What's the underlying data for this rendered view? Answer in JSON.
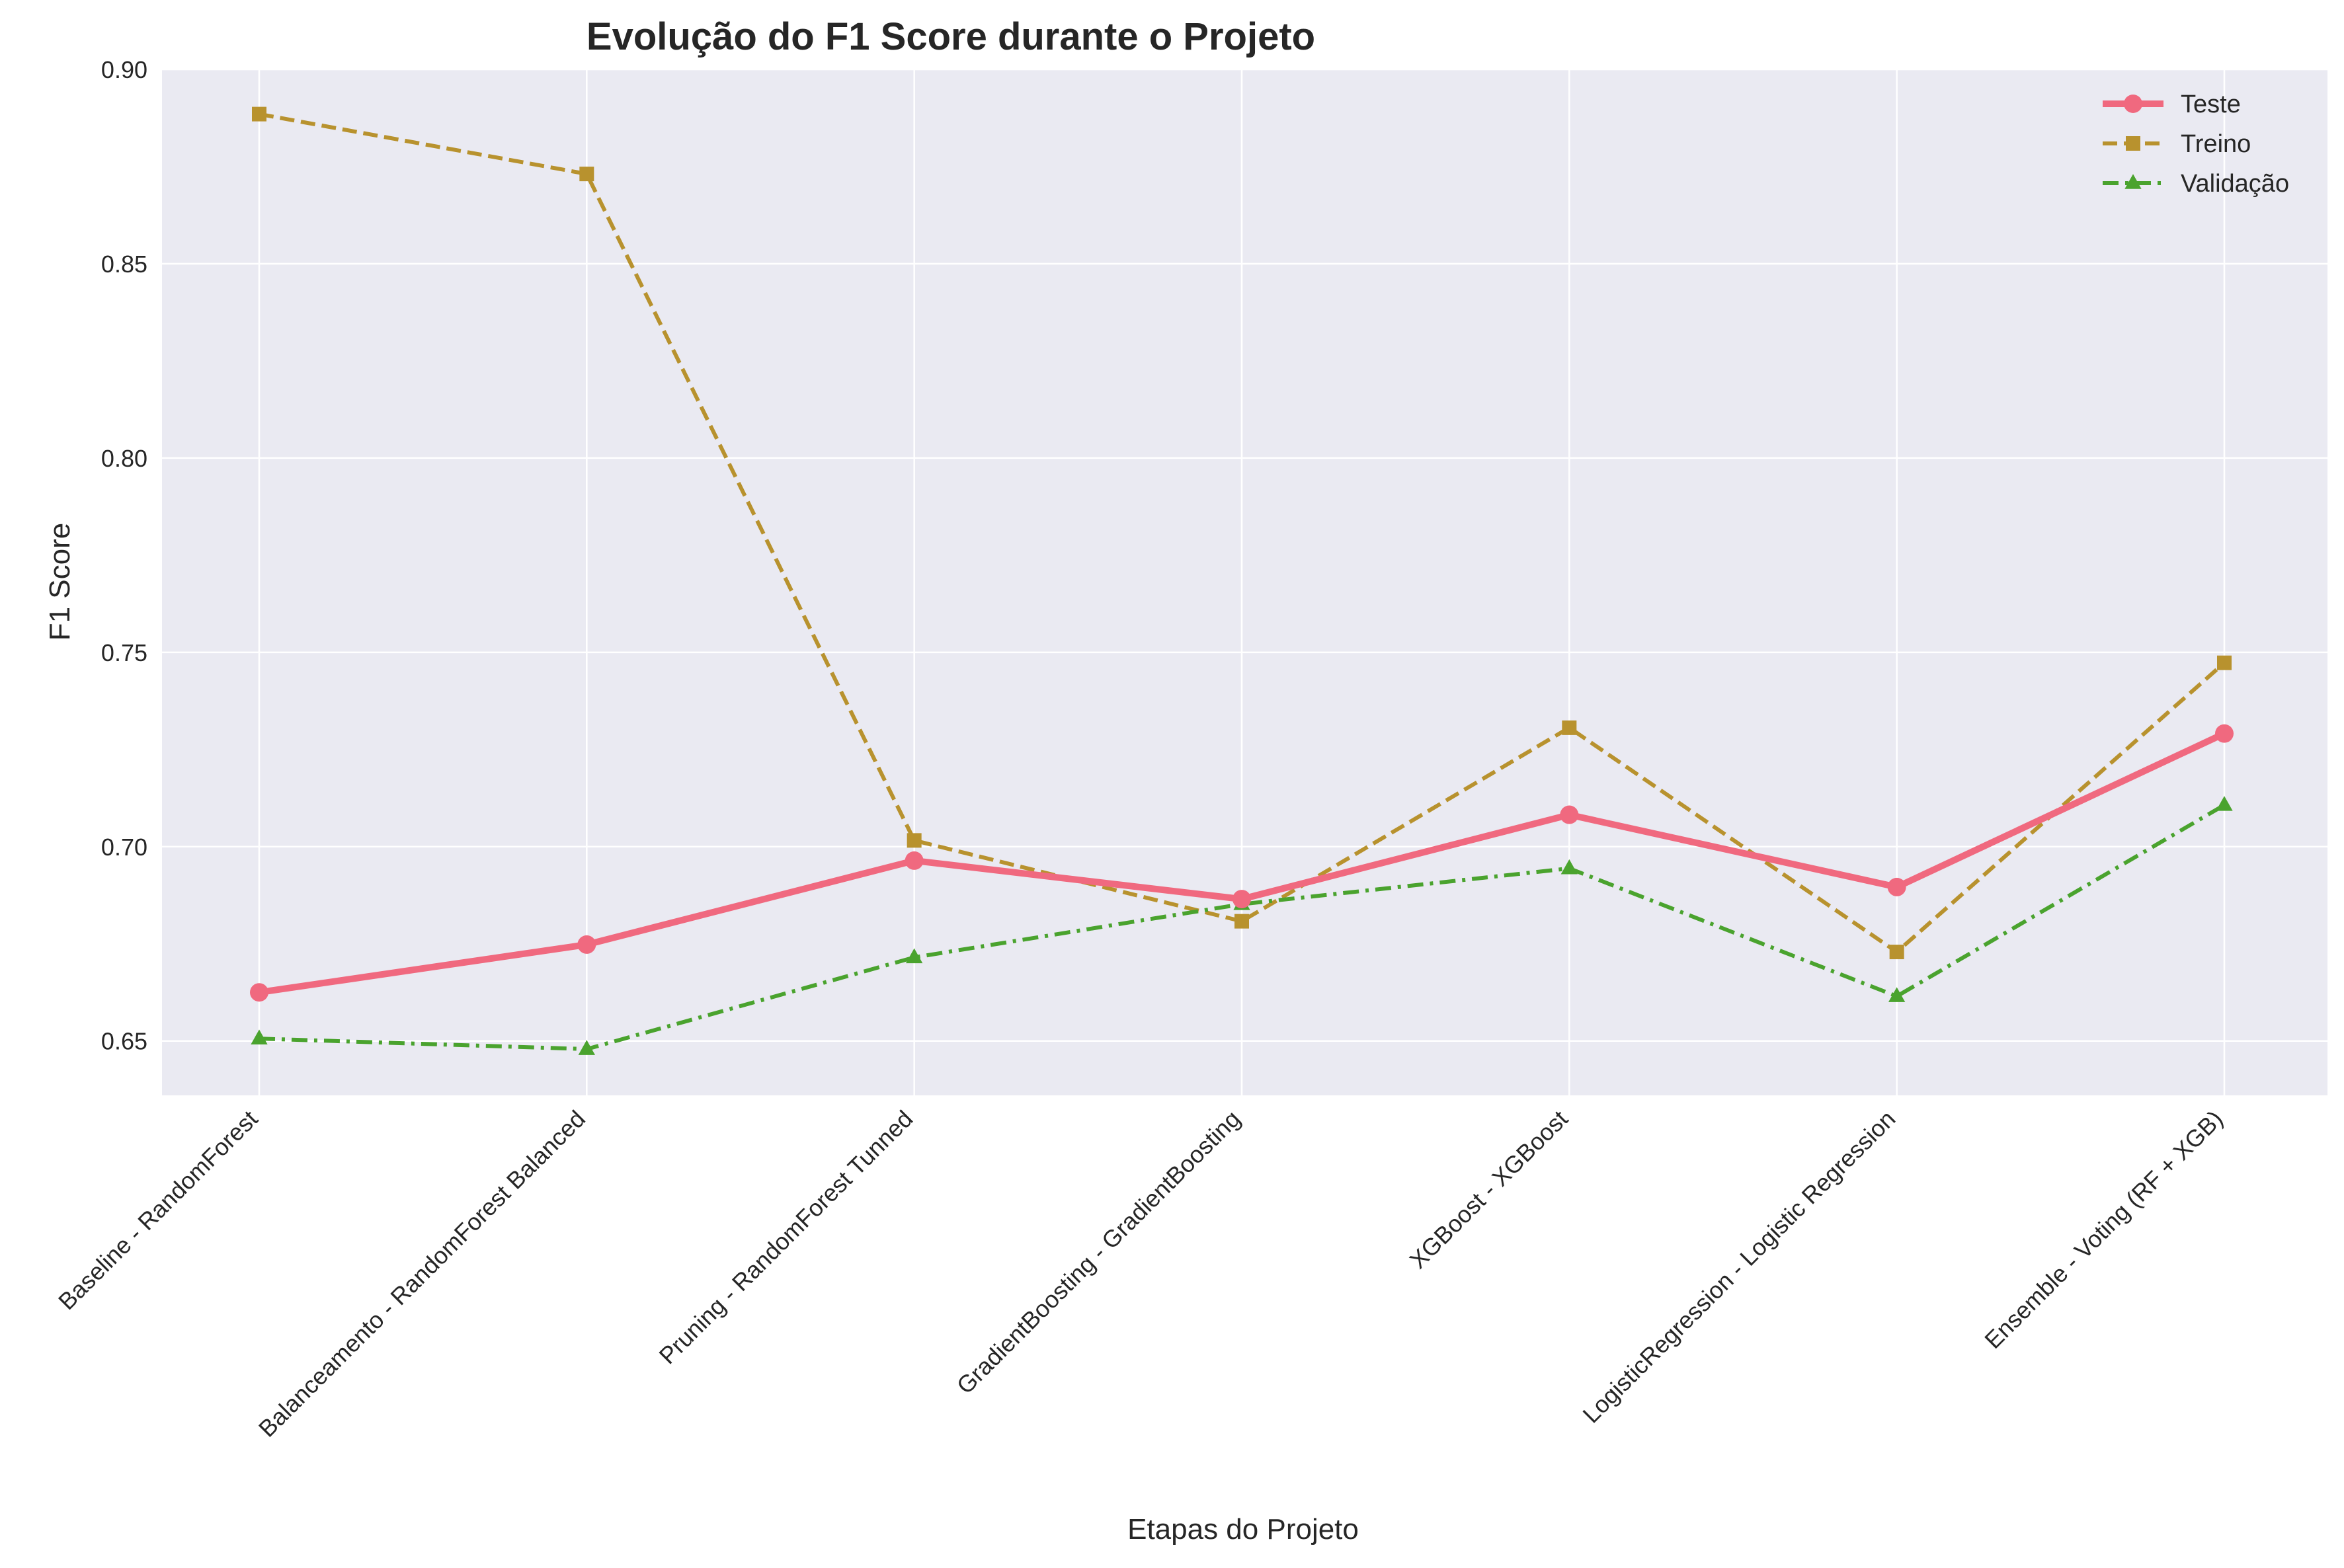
{
  "chart_data": {
    "type": "line",
    "title": "Evolução do F1 Score durante o Projeto",
    "xlabel": "Etapas do Projeto",
    "ylabel": "F1 Score",
    "categories": [
      "Baseline - RandomForest",
      "Balanceamento - RandomForest Balanced",
      "Pruning - RandomForest Tunned",
      "GradientBoosting - GradientBoosting",
      "XGBoost - XGBoost",
      "LogisticRegression - Logistic Regression",
      "Ensemble - Voting (RF + XGB)"
    ],
    "ylim": [
      0.636,
      0.9
    ],
    "yticks": [
      0.65,
      0.7,
      0.75,
      0.8,
      0.85,
      0.9
    ],
    "ytick_labels": [
      "0.65",
      "0.70",
      "0.75",
      "0.80",
      "0.85",
      "0.90"
    ],
    "grid": true,
    "legend_position": "top-right",
    "background": "#eaeaf2",
    "series": [
      {
        "name": "Teste",
        "values": [
          0.6625,
          0.6748,
          0.6964,
          0.6865,
          0.7082,
          0.6896,
          0.7291
        ],
        "color": "#f0697f",
        "line_style": "solid",
        "marker": "circle"
      },
      {
        "name": "Treino",
        "values": [
          0.8885,
          0.8731,
          0.7016,
          0.6808,
          0.7306,
          0.6729,
          0.7473
        ],
        "color": "#b8922e",
        "line_style": "dashed",
        "marker": "square"
      },
      {
        "name": "Validação",
        "values": [
          0.6506,
          0.6479,
          0.6715,
          0.6852,
          0.6944,
          0.6615,
          0.7107
        ],
        "color": "#4aa32e",
        "line_style": "dashdot",
        "marker": "triangle"
      }
    ]
  }
}
